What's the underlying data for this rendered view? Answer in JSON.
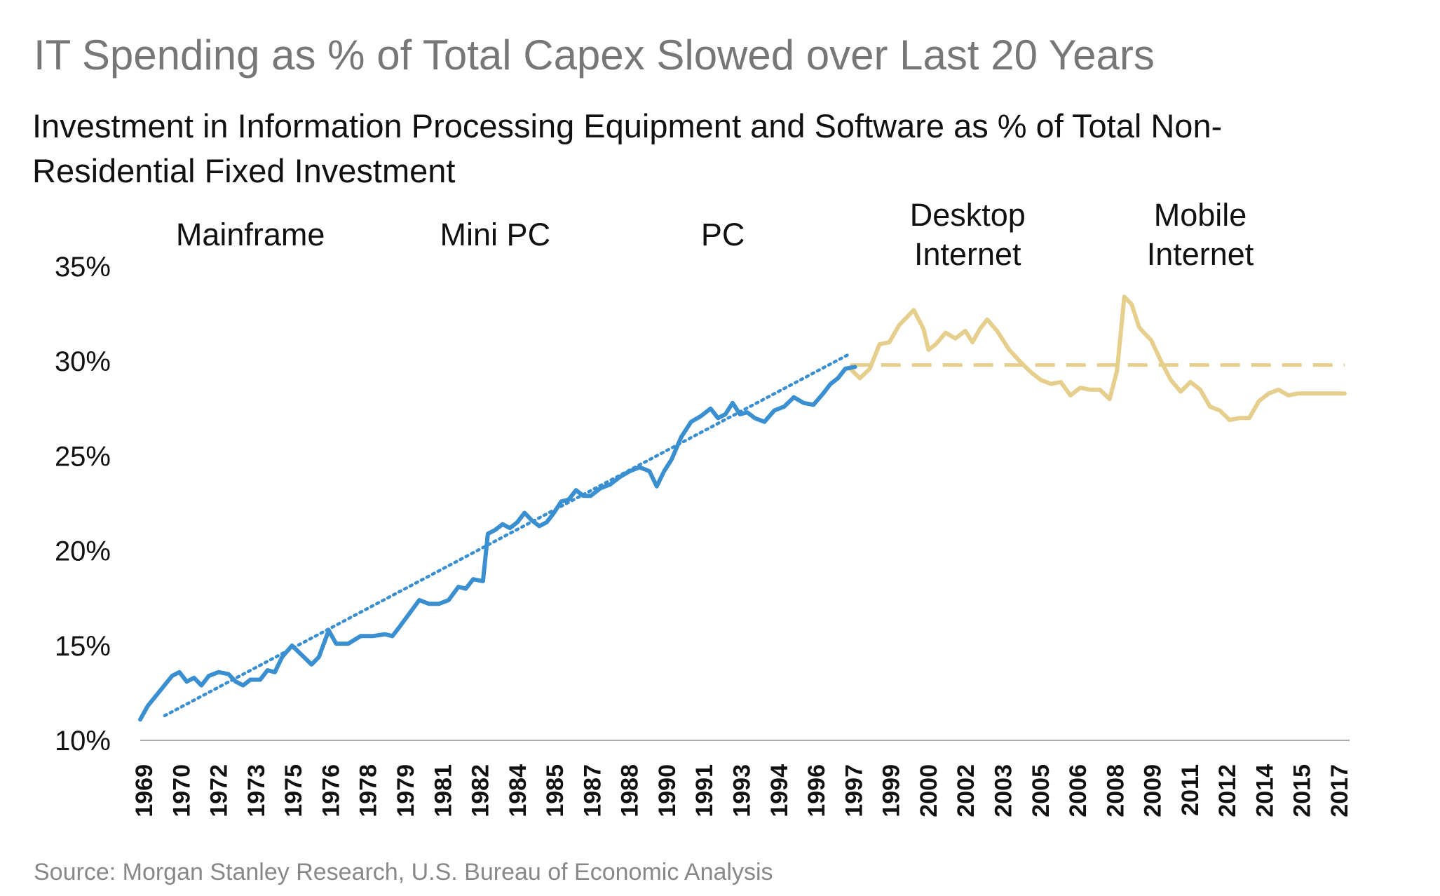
{
  "header": {
    "headline": "IT Spending as % of Total Capex Slowed over Last 20 Years"
  },
  "source": "Source: Morgan Stanley Research, U.S. Bureau of Economic Analysis",
  "colors": {
    "blue_series": "#3a8fd1",
    "gold_series": "#e6cf8d",
    "text": "#111111",
    "headline": "#777777",
    "source": "#888888"
  },
  "chart_data": {
    "type": "line",
    "title": "Investment in Information Processing Equipment and Software as % of Total Non-Residential Fixed Investment",
    "xlabel": "",
    "ylabel": "",
    "xlim": [
      1969,
      2018.4
    ],
    "ylim": [
      10,
      35
    ],
    "y_ticks": [
      "10%",
      "15%",
      "20%",
      "25%",
      "30%",
      "35%"
    ],
    "x_ticks": [
      "1969",
      "1970",
      "1972",
      "1973",
      "1975",
      "1976",
      "1978",
      "1979",
      "1981",
      "1982",
      "1984",
      "1985",
      "1987",
      "1988",
      "1990",
      "1991",
      "1993",
      "1994",
      "1996",
      "1997",
      "1999",
      "2000",
      "2002",
      "2003",
      "2005",
      "2006",
      "2008",
      "2009",
      "2011",
      "2012",
      "2014",
      "2015",
      "2017"
    ],
    "grid": false,
    "era_labels": [
      {
        "lines": [
          "Mainframe"
        ],
        "x": 1973.5
      },
      {
        "lines": [
          "Mini PC"
        ],
        "x": 1983.5
      },
      {
        "lines": [
          "PC"
        ],
        "x": 1992.8
      },
      {
        "lines": [
          "Desktop",
          "Internet"
        ],
        "x": 2002.8
      },
      {
        "lines": [
          "Mobile",
          "Internet"
        ],
        "x": 2012.3
      }
    ],
    "series": [
      {
        "style": "solid-blue",
        "x": [
          1969.0,
          1969.3,
          1969.8,
          1970.3,
          1970.6,
          1970.9,
          1971.2,
          1971.5,
          1971.8,
          1972.2,
          1972.6,
          1972.9,
          1973.2,
          1973.5,
          1973.9,
          1974.2,
          1974.5,
          1974.8,
          1975.2,
          1975.6,
          1976.0,
          1976.3,
          1976.7,
          1977.0,
          1977.5,
          1978.0,
          1978.5,
          1979.0,
          1979.3,
          1979.6,
          1980.0,
          1980.4,
          1980.8,
          1981.2,
          1981.6,
          1982.0,
          1982.3,
          1982.6,
          1983.0,
          1983.2,
          1983.5,
          1983.8,
          1984.1,
          1984.4,
          1984.7,
          1985.0,
          1985.3,
          1985.6,
          1985.9,
          1986.2,
          1986.5,
          1986.8,
          1987.1,
          1987.4,
          1987.8,
          1988.2,
          1988.6,
          1989.0,
          1989.4,
          1989.8,
          1990.1,
          1990.4,
          1990.7,
          1991.1,
          1991.5,
          1991.9,
          1992.3,
          1992.6,
          1992.9,
          1993.2,
          1993.5,
          1993.8,
          1994.1,
          1994.5,
          1994.9,
          1995.3,
          1995.7,
          1996.1,
          1996.5,
          1996.9,
          1997.2,
          1997.5,
          1997.8,
          1998.2
        ],
        "y": [
          11.1,
          11.8,
          12.6,
          13.4,
          13.6,
          13.1,
          13.3,
          12.9,
          13.4,
          13.6,
          13.5,
          13.1,
          12.9,
          13.2,
          13.2,
          13.7,
          13.6,
          14.4,
          15.0,
          14.5,
          14.0,
          14.4,
          15.8,
          15.1,
          15.1,
          15.5,
          15.5,
          15.6,
          15.5,
          16.0,
          16.7,
          17.4,
          17.2,
          17.2,
          17.4,
          18.1,
          18.0,
          18.5,
          18.4,
          20.9,
          21.1,
          21.4,
          21.2,
          21.5,
          22.0,
          21.6,
          21.3,
          21.5,
          22.0,
          22.6,
          22.7,
          23.2,
          22.9,
          22.9,
          23.3,
          23.5,
          23.9,
          24.2,
          24.4,
          24.2,
          23.4,
          24.2,
          24.8,
          26.0,
          26.8,
          27.1,
          27.5,
          27.0,
          27.2,
          27.8,
          27.2,
          27.3,
          27.0,
          26.8,
          27.4,
          27.6,
          28.1,
          27.8,
          27.7,
          28.3,
          28.8,
          29.1,
          29.6,
          29.7
        ]
      },
      {
        "style": "dotted-blue-trend",
        "x": [
          1970.0,
          1998.0
        ],
        "y": [
          11.3,
          30.4
        ]
      },
      {
        "style": "solid-gold",
        "x": [
          1998.0,
          1998.4,
          1998.8,
          1999.2,
          1999.6,
          2000.0,
          2000.3,
          2000.6,
          2001.0,
          2001.2,
          2001.5,
          2001.9,
          2002.3,
          2002.7,
          2003.0,
          2003.3,
          2003.6,
          2004.0,
          2004.5,
          2005.0,
          2005.4,
          2005.8,
          2006.2,
          2006.6,
          2007.0,
          2007.4,
          2007.8,
          2008.2,
          2008.6,
          2008.9,
          2009.2,
          2009.5,
          2009.8,
          2010.0,
          2010.3,
          2010.7,
          2011.1,
          2011.5,
          2011.9,
          2012.3,
          2012.7,
          2013.1,
          2013.5,
          2013.9,
          2014.3,
          2014.7,
          2015.1,
          2015.5,
          2015.9,
          2016.3,
          2016.7,
          2017.1,
          2017.5,
          2017.9,
          2018.2
        ],
        "y": [
          29.6,
          29.1,
          29.6,
          30.9,
          31.0,
          31.9,
          32.3,
          32.7,
          31.7,
          30.6,
          30.9,
          31.5,
          31.2,
          31.6,
          31.0,
          31.7,
          32.2,
          31.6,
          30.6,
          29.9,
          29.4,
          29.0,
          28.8,
          28.9,
          28.2,
          28.6,
          28.5,
          28.5,
          28.0,
          29.5,
          33.4,
          33.0,
          31.8,
          31.5,
          31.1,
          30.0,
          29.0,
          28.4,
          28.9,
          28.5,
          27.6,
          27.4,
          26.9,
          27.0,
          27.0,
          27.9,
          28.3,
          28.5,
          28.2,
          28.3,
          28.3,
          28.3,
          28.3,
          28.3,
          28.3
        ]
      },
      {
        "style": "dashed-gold-average",
        "x": [
          1998.0,
          2018.2
        ],
        "y": [
          29.8,
          29.8
        ]
      }
    ]
  }
}
